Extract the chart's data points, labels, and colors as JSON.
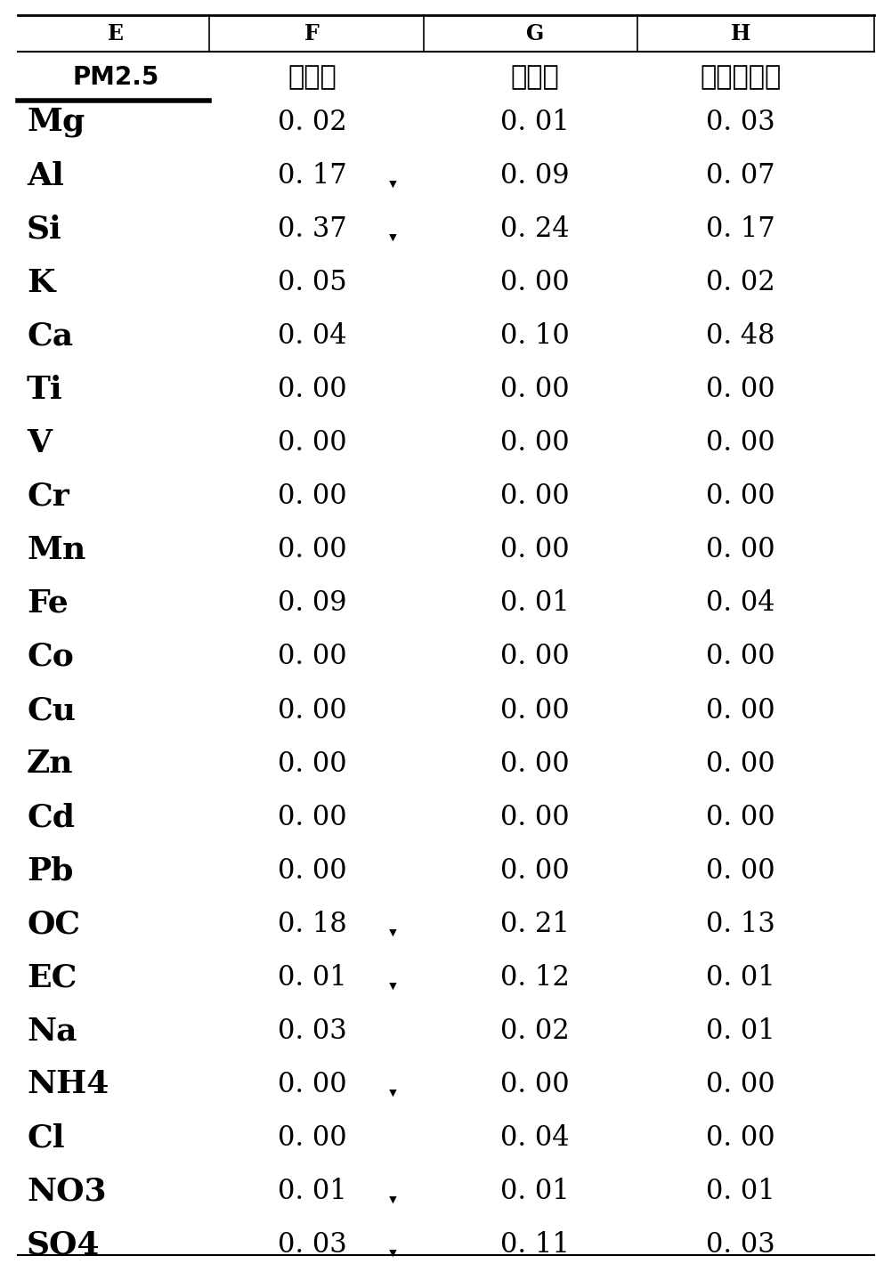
{
  "header_row1_labels": [
    "E",
    "F",
    "G",
    "H"
  ],
  "header_row2_labels": [
    "PM2.5",
    "土壤尘",
    "燃煤尘",
    "建筑水泥尘"
  ],
  "rows": [
    [
      "Mg",
      "0.02",
      "0.01",
      "0.03"
    ],
    [
      "Al",
      "0.17",
      "0.09",
      "0.07"
    ],
    [
      "Si",
      "0.37",
      "0.24",
      "0.17"
    ],
    [
      "K",
      "0.05",
      "0.00",
      "0.02"
    ],
    [
      "Ca",
      "0.04",
      "0.10",
      "0.48"
    ],
    [
      "Ti",
      "0.00",
      "0.00",
      "0.00"
    ],
    [
      "V",
      "0.00",
      "0.00",
      "0.00"
    ],
    [
      "Cr",
      "0.00",
      "0.00",
      "0.00"
    ],
    [
      "Mn",
      "0.00",
      "0.00",
      "0.00"
    ],
    [
      "Fe",
      "0.09",
      "0.01",
      "0.04"
    ],
    [
      "Co",
      "0.00",
      "0.00",
      "0.00"
    ],
    [
      "Cu",
      "0.00",
      "0.00",
      "0.00"
    ],
    [
      "Zn",
      "0.00",
      "0.00",
      "0.00"
    ],
    [
      "Cd",
      "0.00",
      "0.00",
      "0.00"
    ],
    [
      "Pb",
      "0.00",
      "0.00",
      "0.00"
    ],
    [
      "OC",
      "0.18",
      "0.21",
      "0.13"
    ],
    [
      "EC",
      "0.01",
      "0.12",
      "0.01"
    ],
    [
      "Na",
      "0.03",
      "0.02",
      "0.01"
    ],
    [
      "NH4",
      "0.00",
      "0.00",
      "0.00"
    ],
    [
      "Cl",
      "0.00",
      "0.04",
      "0.00"
    ],
    [
      "NO3",
      "0.01",
      "0.01",
      "0.01"
    ],
    [
      "SO4",
      "0.03",
      "0.11",
      "0.03"
    ]
  ],
  "arrow_rows": [
    1,
    2,
    15,
    16,
    18,
    20,
    21
  ],
  "figsize": [
    10.02,
    14.47
  ],
  "dpi": 100,
  "bg_color": "#ffffff",
  "text_color": "#000000"
}
